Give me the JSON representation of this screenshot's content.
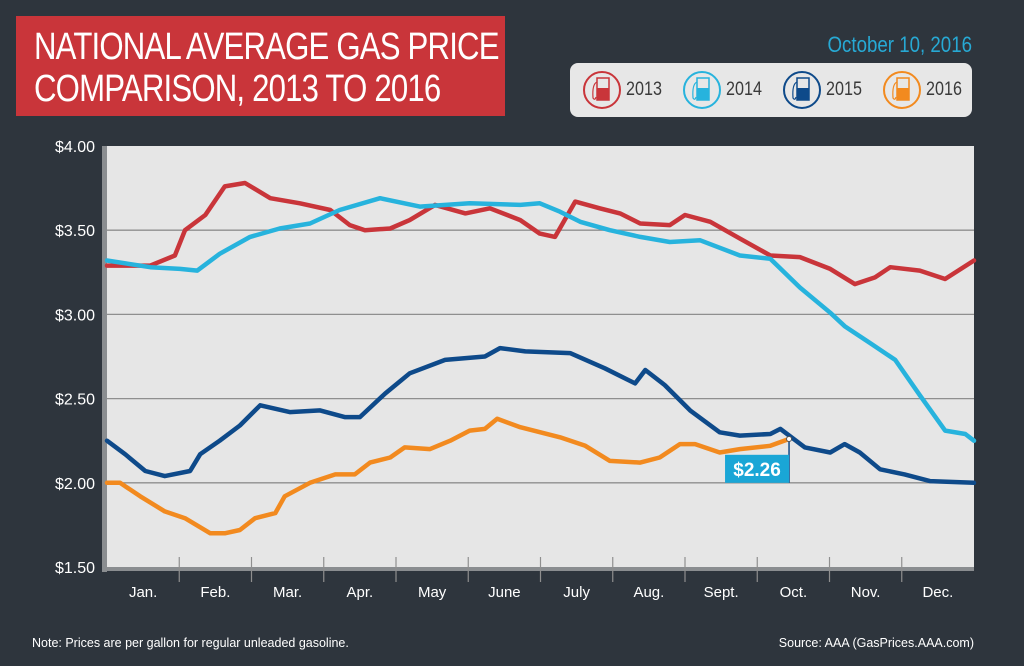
{
  "header": {
    "title_line1": "NATIONAL AVERAGE GAS PRICE",
    "title_line2": "COMPARISON, 2013 TO 2016",
    "date": "October 10, 2016"
  },
  "legend": [
    {
      "label": "2013",
      "color": "#c9353a",
      "icon": "gas-pump-icon"
    },
    {
      "label": "2014",
      "color": "#27b3dd",
      "icon": "gas-pump-icon"
    },
    {
      "label": "2015",
      "color": "#0e4a8a",
      "icon": "gas-pump-icon"
    },
    {
      "label": "2016",
      "color": "#f28a1f",
      "icon": "gas-pump-icon"
    }
  ],
  "footer": {
    "note": "Note: Prices are per gallon for regular unleaded gasoline.",
    "source": "Source: AAA (GasPrices.AAA.com)"
  },
  "chart_data": {
    "type": "line",
    "title": "NATIONAL AVERAGE GAS PRICE COMPARISON, 2013 TO 2016",
    "xlabel": "",
    "ylabel": "",
    "x_unit": "months elapsed since Jan. 1",
    "xlim": [
      0,
      12
    ],
    "ylim": [
      1.5,
      4.0
    ],
    "yticks": [
      1.5,
      2.0,
      2.5,
      3.0,
      3.5,
      4.0
    ],
    "ytick_labels": [
      "$1.50",
      "$2.00",
      "$2.50",
      "$3.00",
      "$3.50",
      "$4.00"
    ],
    "xtick_labels": [
      "Jan.",
      "Feb.",
      "Mar.",
      "Apr.",
      "May",
      "June",
      "July",
      "Aug.",
      "Sept.",
      "Oct.",
      "Nov.",
      "Dec."
    ],
    "grid": "horizontal",
    "legend_position": "top-right",
    "annotation": {
      "text": "$2.26",
      "series": "2016",
      "x": 9.44,
      "y": 2.26,
      "color": "#1aa6d6"
    },
    "series": [
      {
        "name": "2013",
        "color": "#c9353a",
        "points": [
          [
            0,
            3.29
          ],
          [
            0.6,
            3.29
          ],
          [
            0.94,
            3.35
          ],
          [
            1.08,
            3.5
          ],
          [
            1.36,
            3.59
          ],
          [
            1.63,
            3.76
          ],
          [
            1.91,
            3.78
          ],
          [
            2.26,
            3.69
          ],
          [
            2.67,
            3.66
          ],
          [
            3.09,
            3.62
          ],
          [
            3.36,
            3.53
          ],
          [
            3.57,
            3.5
          ],
          [
            3.92,
            3.51
          ],
          [
            4.19,
            3.56
          ],
          [
            4.54,
            3.65
          ],
          [
            4.96,
            3.6
          ],
          [
            5.3,
            3.63
          ],
          [
            5.72,
            3.56
          ],
          [
            5.99,
            3.48
          ],
          [
            6.2,
            3.46
          ],
          [
            6.48,
            3.67
          ],
          [
            6.82,
            3.63
          ],
          [
            7.1,
            3.6
          ],
          [
            7.38,
            3.54
          ],
          [
            7.79,
            3.53
          ],
          [
            8.0,
            3.59
          ],
          [
            8.35,
            3.55
          ],
          [
            8.76,
            3.45
          ],
          [
            9.18,
            3.35
          ],
          [
            9.59,
            3.34
          ],
          [
            10.01,
            3.27
          ],
          [
            10.35,
            3.18
          ],
          [
            10.63,
            3.22
          ],
          [
            10.84,
            3.28
          ],
          [
            11.25,
            3.26
          ],
          [
            11.6,
            3.21
          ],
          [
            12,
            3.32
          ]
        ]
      },
      {
        "name": "2014",
        "color": "#27b3dd",
        "points": [
          [
            0,
            3.32
          ],
          [
            0.6,
            3.28
          ],
          [
            1.01,
            3.27
          ],
          [
            1.25,
            3.26
          ],
          [
            1.56,
            3.36
          ],
          [
            1.98,
            3.46
          ],
          [
            2.39,
            3.51
          ],
          [
            2.81,
            3.54
          ],
          [
            3.22,
            3.62
          ],
          [
            3.78,
            3.69
          ],
          [
            4.33,
            3.64
          ],
          [
            5.02,
            3.66
          ],
          [
            5.72,
            3.65
          ],
          [
            5.99,
            3.66
          ],
          [
            6.27,
            3.61
          ],
          [
            6.55,
            3.55
          ],
          [
            6.96,
            3.5
          ],
          [
            7.38,
            3.46
          ],
          [
            7.79,
            3.43
          ],
          [
            8.21,
            3.44
          ],
          [
            8.76,
            3.35
          ],
          [
            9.18,
            3.33
          ],
          [
            9.59,
            3.16
          ],
          [
            10.01,
            3.01
          ],
          [
            10.21,
            2.93
          ],
          [
            10.56,
            2.83
          ],
          [
            10.91,
            2.73
          ],
          [
            11.25,
            2.52
          ],
          [
            11.6,
            2.31
          ],
          [
            11.88,
            2.29
          ],
          [
            12,
            2.25
          ]
        ]
      },
      {
        "name": "2015",
        "color": "#0e4a8a",
        "points": [
          [
            0,
            2.25
          ],
          [
            0.25,
            2.17
          ],
          [
            0.53,
            2.07
          ],
          [
            0.8,
            2.04
          ],
          [
            1.15,
            2.07
          ],
          [
            1.29,
            2.17
          ],
          [
            1.56,
            2.25
          ],
          [
            1.84,
            2.34
          ],
          [
            2.12,
            2.46
          ],
          [
            2.53,
            2.42
          ],
          [
            2.95,
            2.43
          ],
          [
            3.29,
            2.39
          ],
          [
            3.5,
            2.39
          ],
          [
            3.85,
            2.53
          ],
          [
            4.19,
            2.65
          ],
          [
            4.68,
            2.73
          ],
          [
            5.23,
            2.75
          ],
          [
            5.44,
            2.8
          ],
          [
            5.79,
            2.78
          ],
          [
            6.41,
            2.77
          ],
          [
            6.89,
            2.68
          ],
          [
            7.31,
            2.59
          ],
          [
            7.45,
            2.67
          ],
          [
            7.72,
            2.58
          ],
          [
            8.07,
            2.43
          ],
          [
            8.48,
            2.3
          ],
          [
            8.76,
            2.28
          ],
          [
            9.18,
            2.29
          ],
          [
            9.32,
            2.32
          ],
          [
            9.66,
            2.21
          ],
          [
            10.01,
            2.18
          ],
          [
            10.21,
            2.23
          ],
          [
            10.42,
            2.18
          ],
          [
            10.7,
            2.08
          ],
          [
            11.04,
            2.05
          ],
          [
            11.39,
            2.01
          ],
          [
            12,
            2.0
          ]
        ]
      },
      {
        "name": "2016",
        "color": "#f28a1f",
        "points": [
          [
            0,
            2.0
          ],
          [
            0.18,
            2.0
          ],
          [
            0.46,
            1.92
          ],
          [
            0.8,
            1.83
          ],
          [
            1.08,
            1.79
          ],
          [
            1.43,
            1.7
          ],
          [
            1.63,
            1.7
          ],
          [
            1.84,
            1.72
          ],
          [
            2.05,
            1.79
          ],
          [
            2.33,
            1.82
          ],
          [
            2.46,
            1.92
          ],
          [
            2.81,
            2.0
          ],
          [
            3.16,
            2.05
          ],
          [
            3.43,
            2.05
          ],
          [
            3.64,
            2.12
          ],
          [
            3.92,
            2.15
          ],
          [
            4.12,
            2.21
          ],
          [
            4.47,
            2.2
          ],
          [
            4.75,
            2.25
          ],
          [
            5.02,
            2.31
          ],
          [
            5.23,
            2.32
          ],
          [
            5.4,
            2.38
          ],
          [
            5.72,
            2.33
          ],
          [
            6.27,
            2.27
          ],
          [
            6.62,
            2.22
          ],
          [
            6.96,
            2.13
          ],
          [
            7.38,
            2.12
          ],
          [
            7.65,
            2.15
          ],
          [
            7.93,
            2.23
          ],
          [
            8.14,
            2.23
          ],
          [
            8.48,
            2.18
          ],
          [
            8.76,
            2.2
          ],
          [
            9.18,
            2.22
          ],
          [
            9.44,
            2.26
          ]
        ]
      }
    ]
  }
}
